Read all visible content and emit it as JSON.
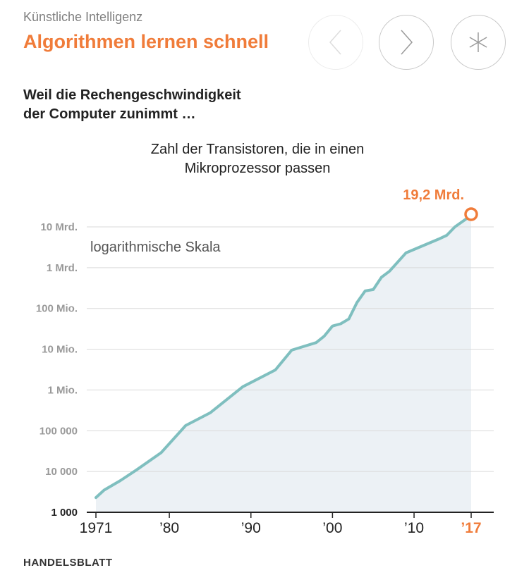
{
  "header": {
    "kicker": "Künstliche Intelligenz",
    "headline": "Algorithmen lernen schnell"
  },
  "nav": {
    "prev_icon": "chevron-left-icon",
    "next_icon": "chevron-right-icon",
    "menu_icon": "asterisk-icon"
  },
  "subhead": {
    "line1": "Weil die Rechengeschwindigkeit",
    "line2": "der Computer zunimmt …"
  },
  "source": "HANDELSBLATT",
  "colors": {
    "accent": "#f07c3a",
    "line": "#7fbfbf",
    "area": "#ecf1f5",
    "grid": "#d9d9d9",
    "tick_text": "#999999"
  },
  "chart_data": {
    "type": "area",
    "title_line1": "Zahl der Transistoren, die in einen",
    "title_line2": "Mikroprozessor passen",
    "annotation": "logarithmische Skala",
    "scale": "log",
    "ylim": [
      1000,
      10000000000
    ],
    "xlim": [
      1971,
      2017
    ],
    "y_ticks": [
      {
        "value": 1000,
        "label": "1 000"
      },
      {
        "value": 10000,
        "label": "10 000"
      },
      {
        "value": 100000,
        "label": "100 000"
      },
      {
        "value": 1000000,
        "label": "1 Mio."
      },
      {
        "value": 10000000,
        "label": "10 Mio."
      },
      {
        "value": 100000000,
        "label": "100 Mio."
      },
      {
        "value": 1000000000,
        "label": "1 Mrd."
      },
      {
        "value": 10000000000,
        "label": "10 Mrd."
      }
    ],
    "x_ticks": [
      {
        "value": 1971,
        "label": "1971",
        "highlight": false
      },
      {
        "value": 1980,
        "label": "’80",
        "highlight": false
      },
      {
        "value": 1990,
        "label": "’90",
        "highlight": false
      },
      {
        "value": 2000,
        "label": "’00",
        "highlight": false
      },
      {
        "value": 2010,
        "label": "’10",
        "highlight": false
      },
      {
        "value": 2017,
        "label": "’17",
        "highlight": true
      }
    ],
    "series": [
      {
        "name": "Transistoren",
        "x": [
          1971,
          1972,
          1974,
          1976,
          1979,
          1982,
          1985,
          1989,
          1993,
          1995,
          1998,
          1999,
          2000,
          2001,
          2002,
          2003,
          2004,
          2005,
          2006,
          2007,
          2009,
          2013,
          2014,
          2015,
          2017
        ],
        "y": [
          2300,
          3500,
          6000,
          11000,
          29000,
          134000,
          275000,
          1200000,
          3100000,
          9500000,
          14500000,
          21000000,
          37000000,
          42000000,
          55000000,
          140000000,
          269000000,
          291000000,
          582000000,
          820000000,
          2300000000,
          5000000000,
          6200000000,
          10000000000,
          19200000000
        ]
      }
    ],
    "highlight_point": {
      "x": 2017,
      "y": 19200000000,
      "label": "19,2 Mrd."
    }
  }
}
